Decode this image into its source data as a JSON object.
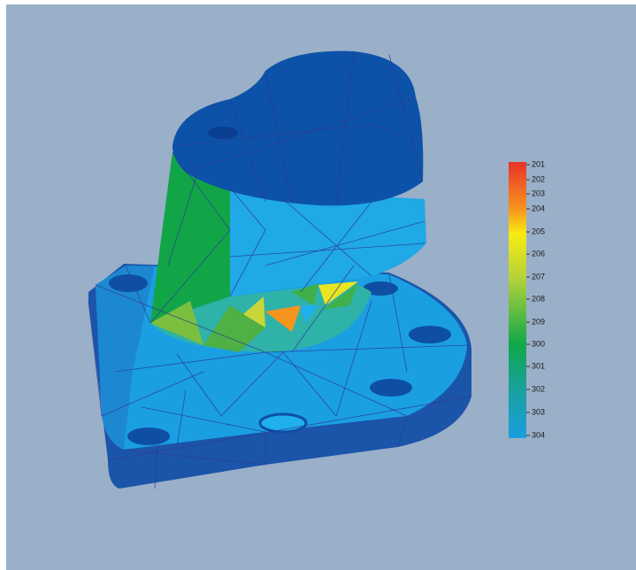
{
  "legend": {
    "labels": [
      201,
      202,
      203,
      204,
      205,
      206,
      207,
      208,
      209,
      300,
      301,
      302,
      303,
      304
    ]
  }
}
